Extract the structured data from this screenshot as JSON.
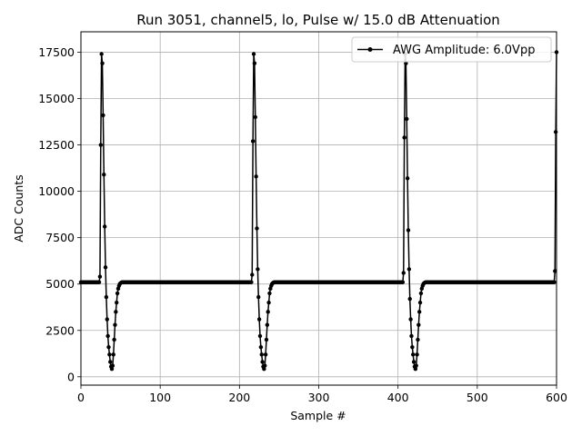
{
  "chart_data": {
    "type": "line",
    "title": "Run 3051, channel5, lo, Pulse w/ 15.0 dB Attenuation",
    "xlabel": "Sample #",
    "ylabel": "ADC Counts",
    "xlim": [
      0,
      600
    ],
    "ylim": [
      -450,
      18600
    ],
    "xticks": [
      0,
      100,
      200,
      300,
      400,
      500,
      600
    ],
    "yticks": [
      0,
      2500,
      5000,
      7500,
      10000,
      12500,
      15000,
      17500
    ],
    "grid": true,
    "legend_position": "top-right",
    "series": [
      {
        "name": "AWG Amplitude: 6.0Vpp",
        "color": "#000000",
        "marker": "circle",
        "baseline": 5100,
        "pulses": [
          {
            "start": 24,
            "shape": [
              5400,
              12500,
              17400,
              16900,
              14100,
              10900,
              8100,
              5900,
              4300,
              3100,
              2200,
              1600,
              1200,
              800,
              550,
              420,
              600,
              1200,
              2000,
              2800,
              3500,
              4000,
              4500,
              4750,
              4900,
              5000,
              5050,
              5080
            ]
          },
          {
            "start": 216,
            "shape": [
              5500,
              12700,
              17400,
              16900,
              14000,
              10800,
              8000,
              5800,
              4300,
              3100,
              2200,
              1600,
              1200,
              800,
              550,
              420,
              600,
              1200,
              2000,
              2800,
              3500,
              4000,
              4500,
              4750,
              4900,
              5000,
              5050,
              5080
            ]
          },
          {
            "start": 407,
            "shape": [
              5600,
              12900,
              17400,
              16900,
              13900,
              10700,
              7900,
              5800,
              4200,
              3100,
              2200,
              1600,
              1200,
              800,
              550,
              420,
              600,
              1200,
              2000,
              2800,
              3500,
              4000,
              4500,
              4750,
              4900,
              5000,
              5050,
              5080
            ]
          },
          {
            "start": 598,
            "shape": [
              5700,
              13200,
              17500
            ]
          }
        ],
        "x_range": [
          0,
          600
        ]
      }
    ]
  }
}
